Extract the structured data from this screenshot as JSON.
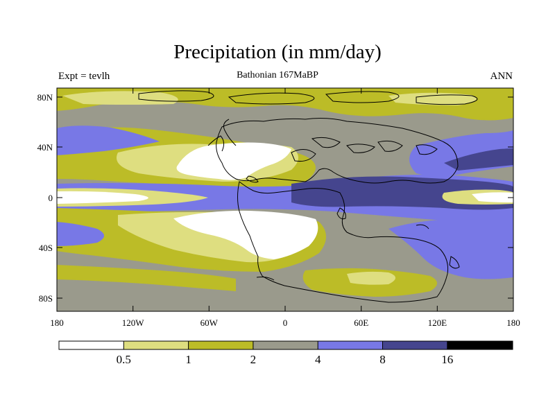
{
  "title": "Precipitation (in mm/day)",
  "left_label": "Expt = tevlh",
  "center_label": "Bathonian 167MaBP",
  "right_label": "ANN",
  "axes": {
    "lon_ticks": [
      "180",
      "120W",
      "60W",
      "0",
      "60E",
      "120E",
      "180"
    ],
    "lat_ticks": [
      "80N",
      "40N",
      "0",
      "40S",
      "80S"
    ]
  },
  "colorbar": {
    "colors": [
      "#ffffff",
      "#dede80",
      "#bcbc27",
      "#9a9a8c",
      "#7878e6",
      "#45458e",
      "#000000"
    ],
    "labels": [
      "0.5",
      "1",
      "2",
      "4",
      "8",
      "16"
    ]
  },
  "map": {
    "projection": "equirectangular",
    "lon_range": [
      -180,
      180
    ],
    "lat_range": [
      -90,
      90
    ]
  }
}
